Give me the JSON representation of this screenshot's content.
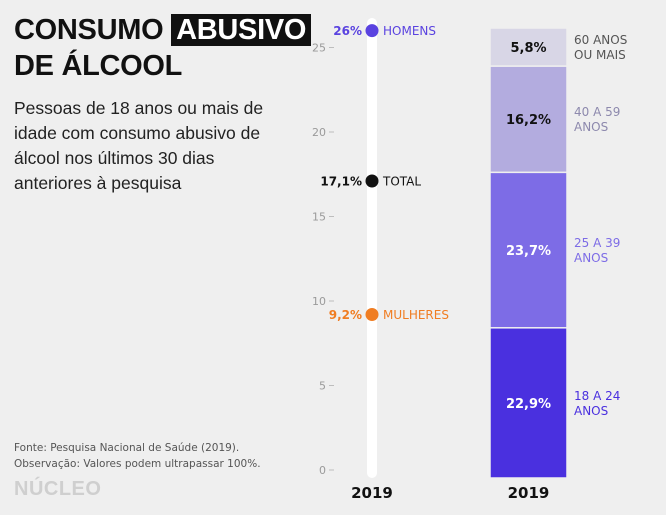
{
  "header": {
    "title_part1": "CONSUMO",
    "title_highlight": "ABUSIVO",
    "title_line2": "DE ÁLCOOL",
    "subtitle": "Pessoas de 18 anos ou mais de idade com consumo abusivo de álcool nos últimos 30 dias anteriores à pesquisa"
  },
  "footer": {
    "source": "Fonte: Pesquisa Nacional de Saúde (2019).",
    "note": "Observação: Valores podem ultrapassar 100%.",
    "logo": "NÚCLEO"
  },
  "colors": {
    "background": "#efefef",
    "men": "#5a43e0",
    "women": "#f07d22",
    "total": "#111111",
    "stack_18_24": "#4a30df",
    "stack_25_39": "#7d6ce6",
    "stack_40_59": "#b3acdf",
    "stack_60": "#d8d6e6",
    "age_label_dark": "#4a30df",
    "age_label_mid": "#7d6ce6",
    "age_label_light": "#8d89ad",
    "age_label_60": "#555555"
  },
  "chart_data": [
    {
      "type": "scatter",
      "x": [
        "2019"
      ],
      "ylim": [
        0,
        27
      ],
      "yticks": [
        0,
        5,
        10,
        15,
        20,
        25
      ],
      "series": [
        {
          "name": "HOMENS",
          "values": [
            26
          ],
          "label": "26%",
          "color": "#5a43e0"
        },
        {
          "name": "TOTAL",
          "values": [
            17.1
          ],
          "label": "17,1%",
          "color": "#111111"
        },
        {
          "name": "MULHERES",
          "values": [
            9.2
          ],
          "label": "9,2%",
          "color": "#f07d22"
        }
      ]
    },
    {
      "type": "bar",
      "stacked": true,
      "categories": [
        "2019"
      ],
      "series": [
        {
          "name": "18 A 24 ANOS",
          "values": [
            22.9
          ],
          "label": "22,9%"
        },
        {
          "name": "25 A 39 ANOS",
          "values": [
            23.7
          ],
          "label": "23,7%"
        },
        {
          "name": "40 A 59 ANOS",
          "values": [
            16.2
          ],
          "label": "16,2%"
        },
        {
          "name": "60 ANOS OU MAIS",
          "values": [
            5.8
          ],
          "label": "5,8%"
        }
      ]
    }
  ]
}
